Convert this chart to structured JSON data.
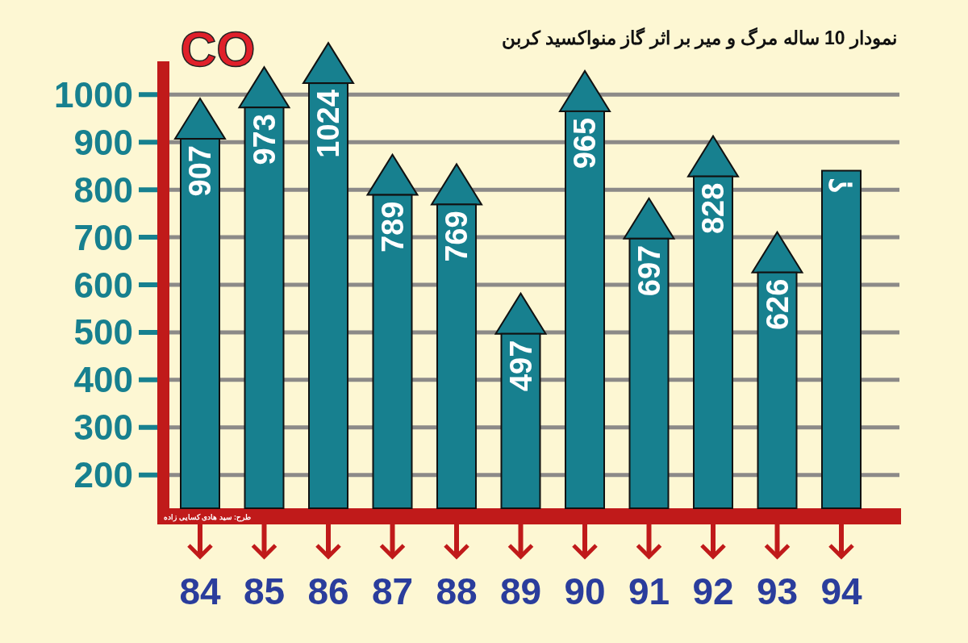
{
  "chart_data": {
    "type": "bar",
    "title": "نمودار 10 ساله مرگ و میر بر اثر گاز منواکسید کربن",
    "subtitle": "CO",
    "categories": [
      "84",
      "85",
      "86",
      "87",
      "88",
      "89",
      "90",
      "91",
      "92",
      "93",
      "94"
    ],
    "values": [
      907,
      973,
      1024,
      789,
      769,
      497,
      965,
      697,
      828,
      626,
      840
    ],
    "value_labels": [
      "907",
      "973",
      "1024",
      "789",
      "769",
      "497",
      "965",
      "697",
      "828",
      "626",
      "؟"
    ],
    "color": "#17808f",
    "ylim": [
      130,
      1070
    ],
    "yticks": [
      200,
      300,
      400,
      500,
      600,
      700,
      800,
      900,
      1000
    ],
    "grid": "y",
    "annotations": [
      "طرح: سید هادی کسایی زاده"
    ]
  }
}
